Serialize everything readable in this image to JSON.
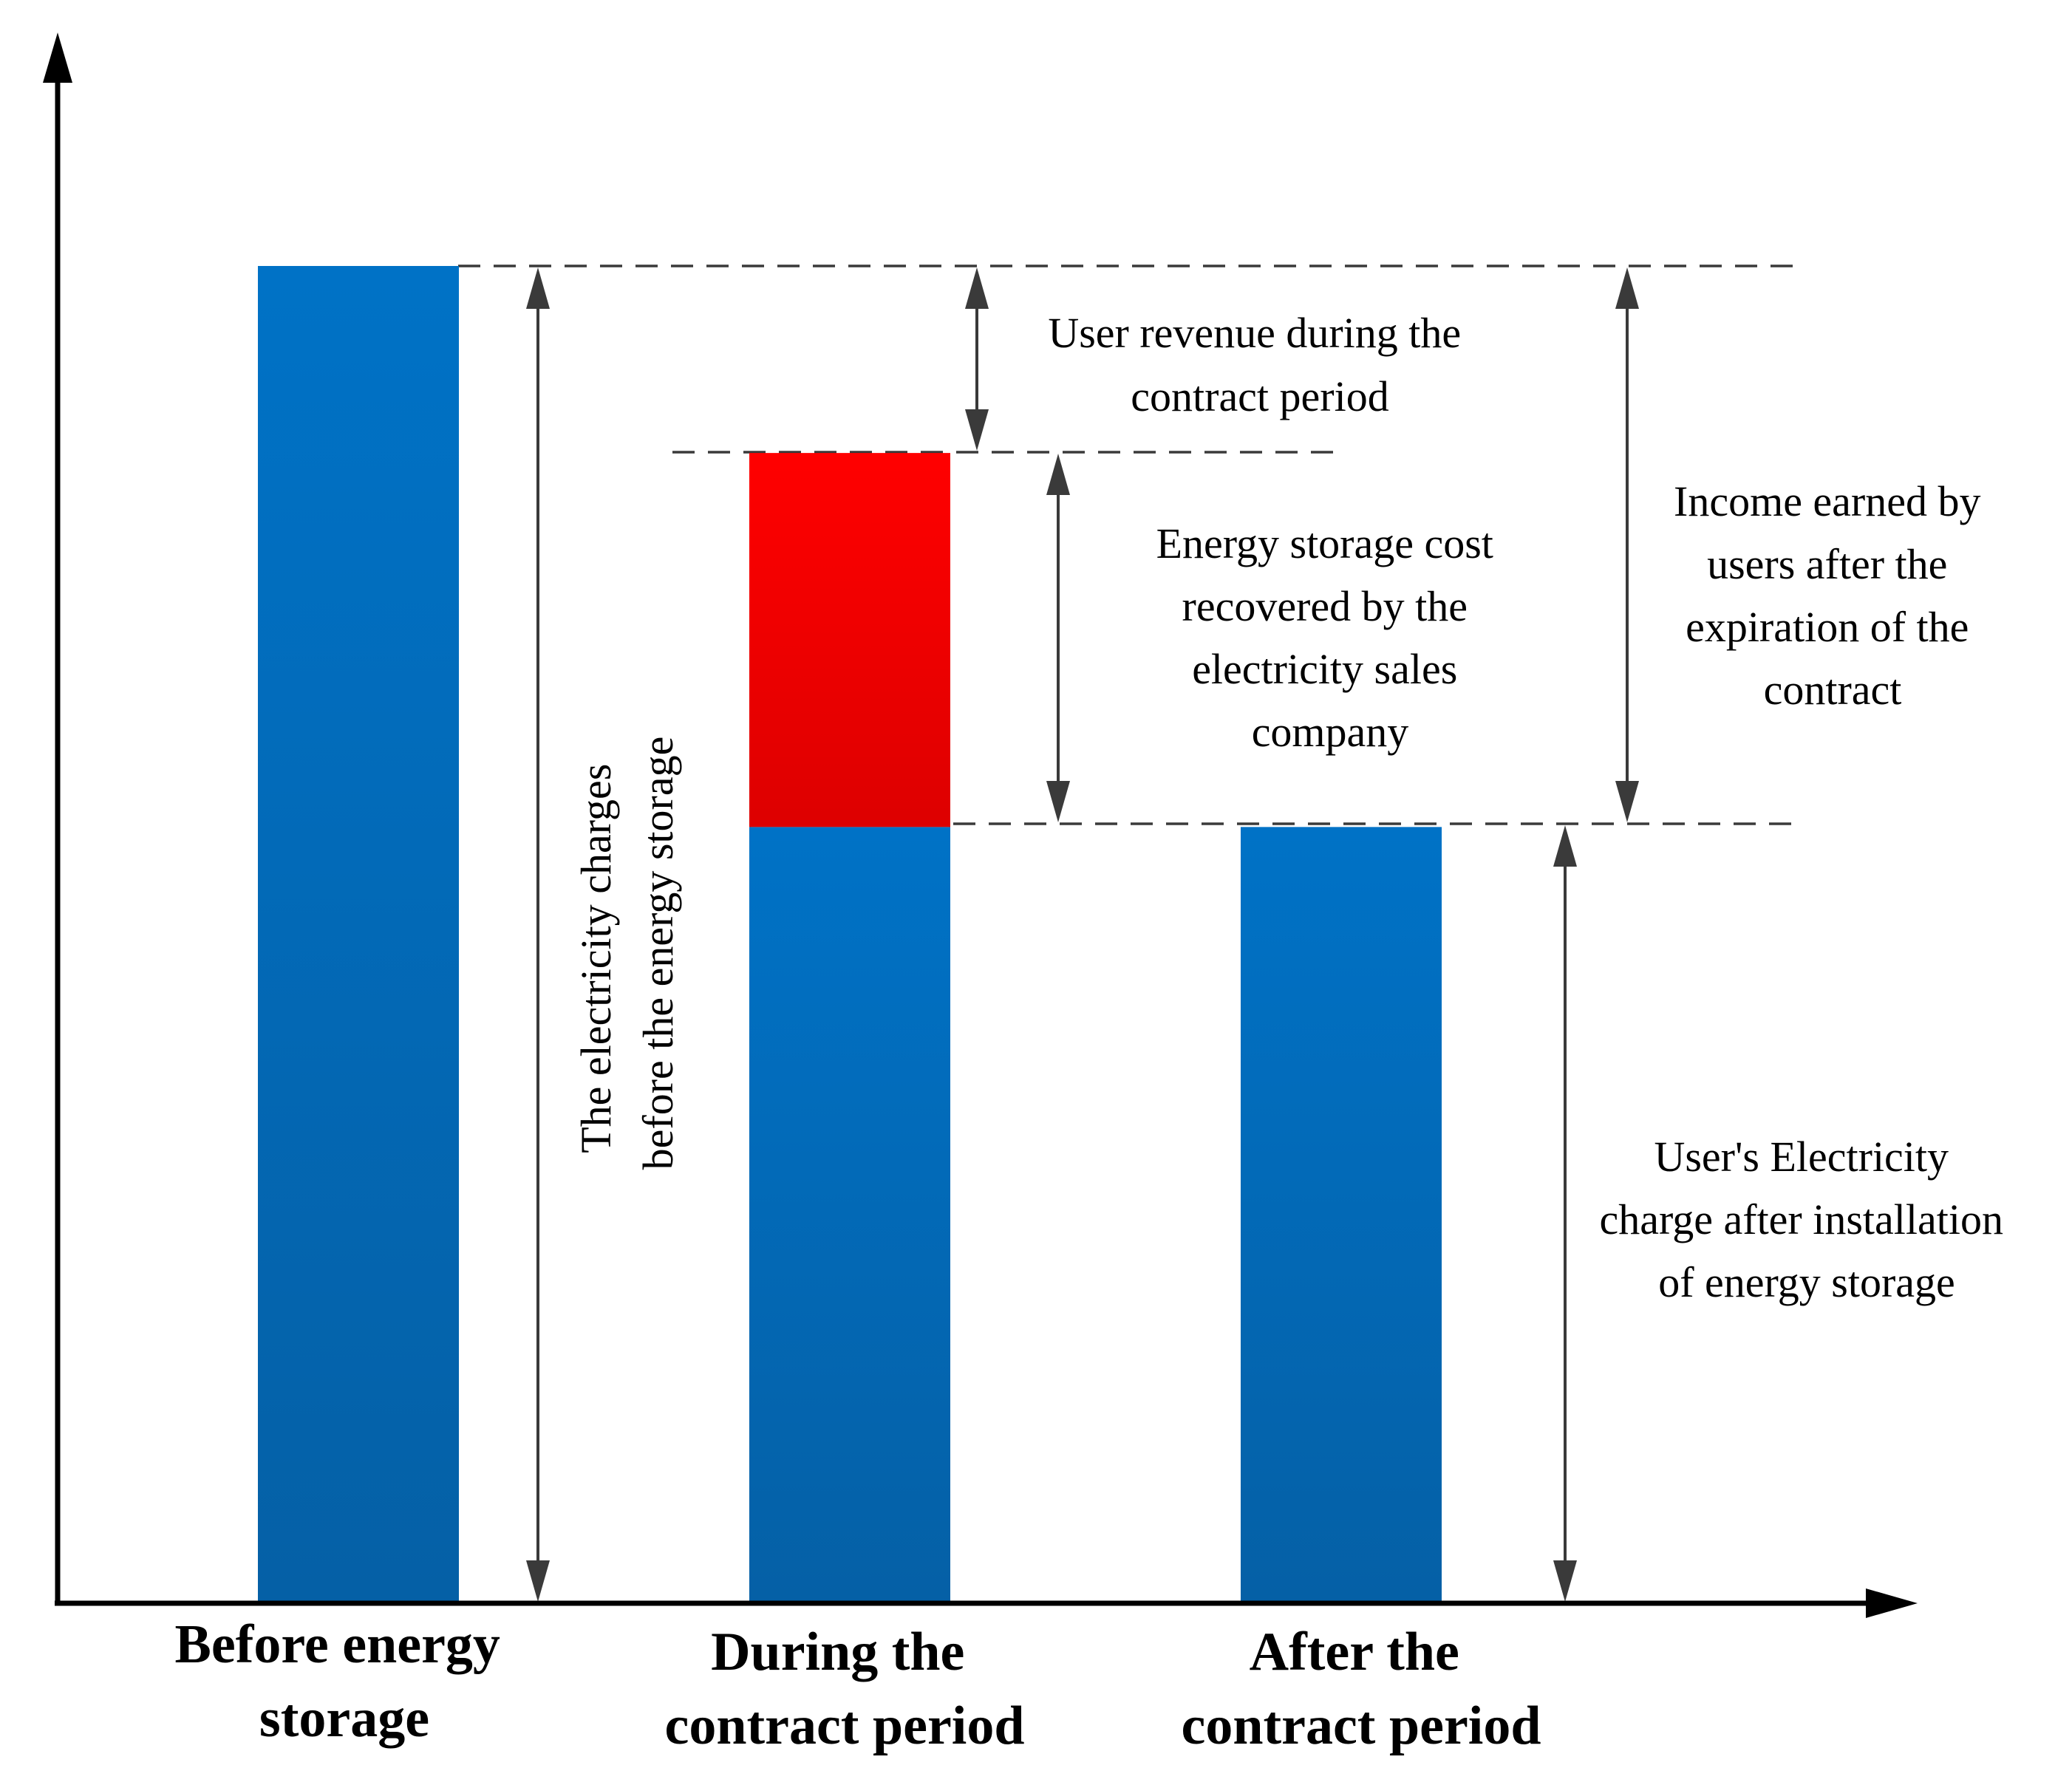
{
  "chart_data": {
    "type": "bar",
    "title": "",
    "categories": [
      "Before energy storage",
      "During the contract period",
      "After the contract period"
    ],
    "category_lines": [
      [
        "Before energy",
        "storage"
      ],
      [
        "During the",
        "contract period"
      ],
      [
        "After the",
        "contract period"
      ]
    ],
    "series": [
      {
        "name": "User's electricity charge",
        "color": "#0a6ab8",
        "values": [
          100,
          58,
          58
        ]
      },
      {
        "name": "Energy storage cost recovered",
        "color": "#ee0000",
        "values": [
          0,
          28,
          0
        ]
      }
    ],
    "ylim": [
      0,
      120
    ],
    "xlabel": "",
    "ylabel": "",
    "grid": false
  },
  "annotations": {
    "before_charges": [
      "The electricity charges",
      "before the energy storage"
    ],
    "user_revenue": [
      "User revenue during the",
      "contract period"
    ],
    "storage_cost": [
      "Energy storage cost",
      "recovered by the",
      "electricity sales",
      "company"
    ],
    "income_after": [
      "Income earned by",
      "users after the",
      "expiration of the",
      "contract"
    ],
    "charge_after": [
      "User's Electricity",
      "charge after installation",
      "of energy storage"
    ]
  },
  "colors": {
    "bar_top": "#0072c6",
    "bar_bottom": "#0560a6",
    "red_top": "#ff0000",
    "red_bottom": "#dd0000",
    "lines": "#3a3a3a"
  }
}
